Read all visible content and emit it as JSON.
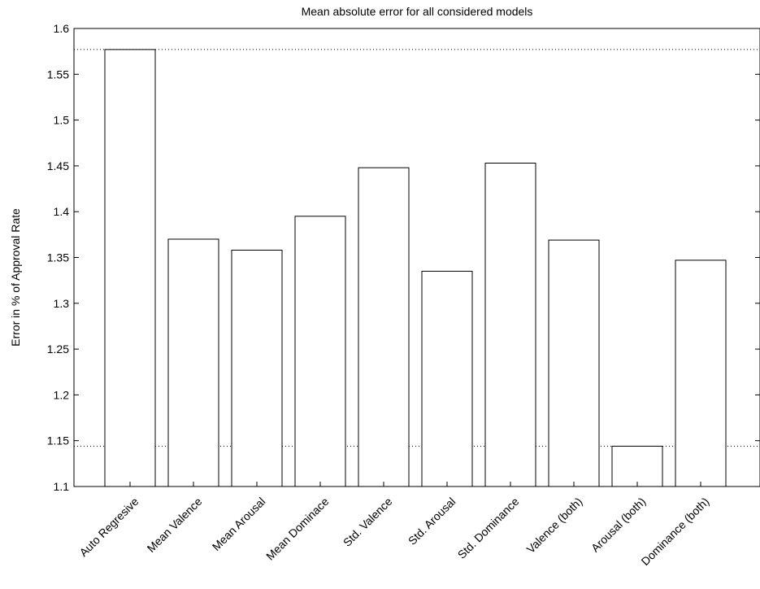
{
  "chart_data": {
    "type": "bar",
    "title": "Mean absolute error for all considered models",
    "xlabel": "",
    "ylabel": "Error in % of Approval Rate",
    "categories": [
      "Auto Regresive",
      "Mean Valence",
      "Mean Arousal",
      "Mean Dominace",
      "Std. Valence",
      "Std. Arousal",
      "Std. Dominance",
      "Valence (both)",
      "Arousal (both)",
      "Dominance (both)"
    ],
    "values": [
      1.577,
      1.37,
      1.358,
      1.395,
      1.448,
      1.335,
      1.453,
      1.369,
      1.144,
      1.347
    ],
    "ylim": [
      1.1,
      1.6
    ],
    "yticks": [
      "1.1",
      "1.15",
      "1.2",
      "1.25",
      "1.3",
      "1.35",
      "1.4",
      "1.45",
      "1.5",
      "1.55",
      "1.6"
    ],
    "reference_lines": [
      1.577,
      1.144
    ],
    "grid": false,
    "colors": {
      "bar_fill": "#ffffff",
      "bar_stroke": "#000000",
      "reference_line": "#000000"
    }
  }
}
